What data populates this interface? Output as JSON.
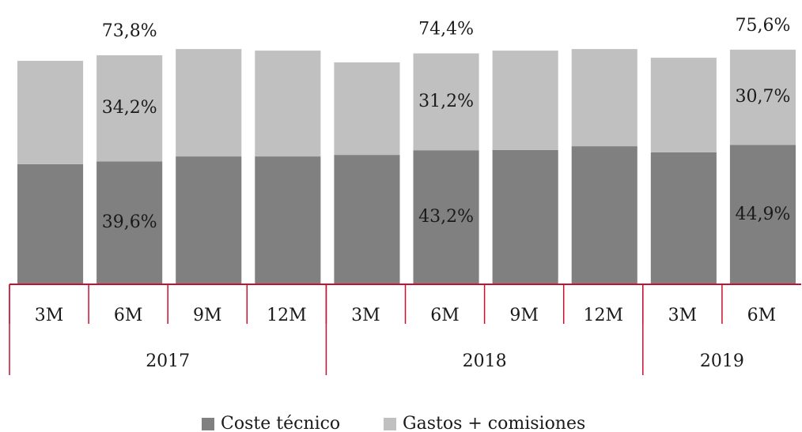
{
  "chart_data": {
    "type": "stacked-bar",
    "categories": [
      "3M",
      "6M",
      "9M",
      "12M",
      "3M",
      "6M",
      "9M",
      "12M",
      "3M",
      "6M"
    ],
    "groups": [
      {
        "label": "2017",
        "span": 4
      },
      {
        "label": "2018",
        "span": 4
      },
      {
        "label": "2019",
        "span": 2
      }
    ],
    "series": [
      {
        "name": "Coste técnico",
        "color": "#808080",
        "values": [
          38.7,
          39.6,
          41.2,
          41.2,
          41.7,
          43.2,
          43.3,
          44.5,
          42.5,
          44.9
        ],
        "value_labels": [
          null,
          "39,6%",
          null,
          null,
          null,
          "43,2%",
          null,
          null,
          null,
          "44,9%"
        ]
      },
      {
        "name": "Gastos + comisiones",
        "color": "#c0c0c0",
        "values": [
          33.3,
          34.2,
          34.6,
          34.1,
          29.8,
          31.2,
          32.0,
          31.3,
          30.5,
          30.7
        ],
        "value_labels": [
          null,
          "34,2%",
          null,
          null,
          null,
          "31,2%",
          null,
          null,
          null,
          "30,7%"
        ]
      }
    ],
    "totals": {
      "values": [
        null,
        73.8,
        null,
        null,
        null,
        74.4,
        null,
        null,
        null,
        75.6
      ],
      "value_labels": [
        null,
        "73,8%",
        null,
        null,
        null,
        "74,4%",
        null,
        null,
        null,
        "75,6%"
      ]
    },
    "ylim": [
      0,
      80
    ],
    "axis_color": "#c8102e"
  }
}
